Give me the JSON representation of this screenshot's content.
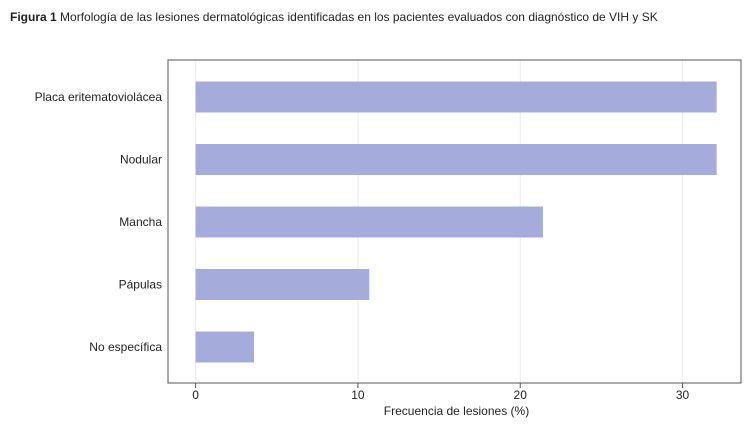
{
  "caption": {
    "lead": "Figura 1",
    "text": "Morfología de las lesiones dermatológicas identificadas en los pacientes evaluados con diagnóstico de VIH y SK"
  },
  "chart_data": {
    "type": "bar",
    "orientation": "horizontal",
    "categories": [
      "Placa eritematoviolácea",
      "Nodular",
      "Mancha",
      "Pápulas",
      "No específica"
    ],
    "values": [
      32.1,
      32.1,
      21.4,
      10.7,
      3.6
    ],
    "xlabel": "Frecuencia de lesiones (%)",
    "ylabel": "",
    "xlim": [
      -1.7,
      33.6
    ],
    "xticks": [
      0,
      10,
      20,
      30
    ],
    "grid": true,
    "bar_color": "#a5acdc",
    "grid_color": "#ebebeb",
    "frame_color": "#555555"
  }
}
